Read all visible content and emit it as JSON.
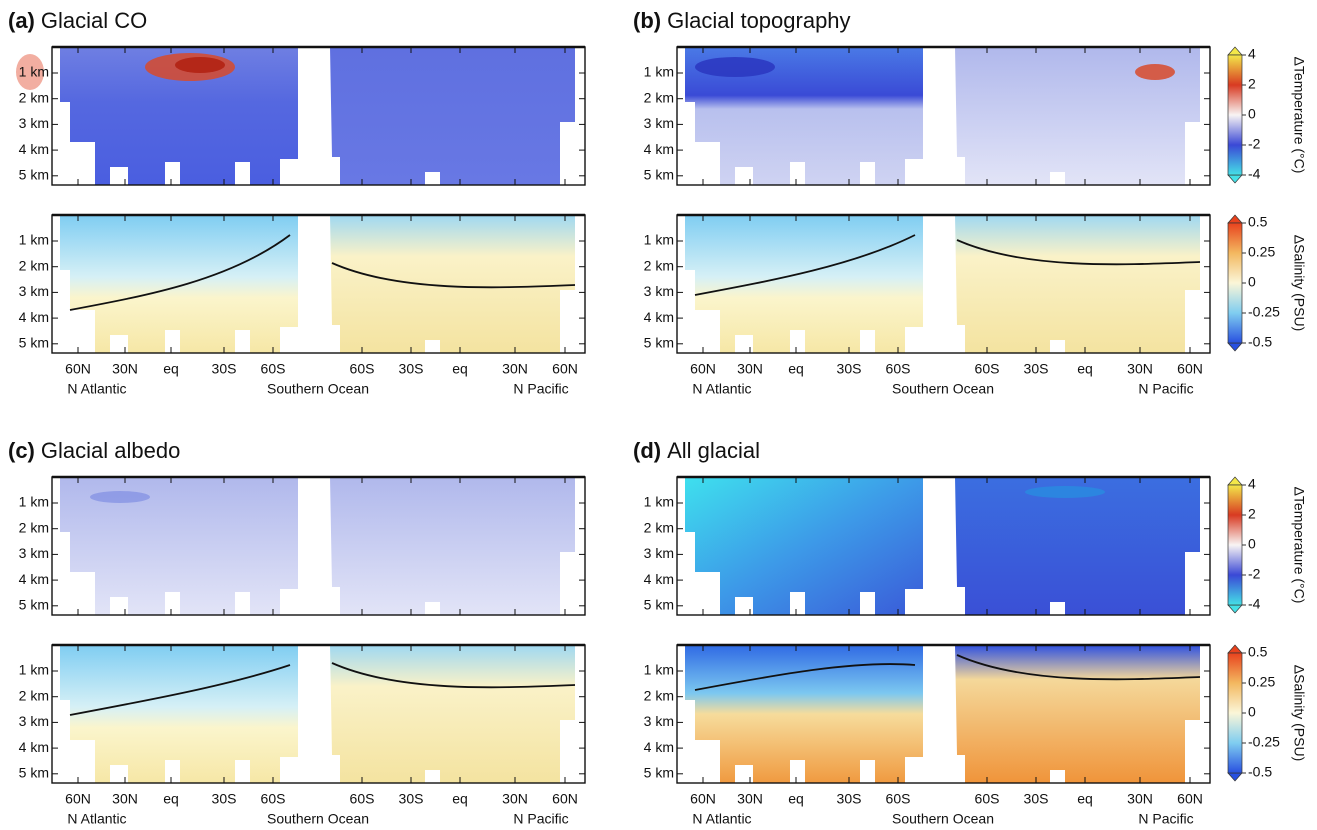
{
  "panels": [
    {
      "label": "(a)",
      "title": "Glacial CO"
    },
    {
      "label": "(b)",
      "title": "Glacial topography"
    },
    {
      "label": "(c)",
      "title": "Glacial albedo"
    },
    {
      "label": "(d)",
      "title": "All glacial"
    }
  ],
  "depth_labels": [
    "1 km",
    "2 km",
    "3 km",
    "4 km",
    "5 km"
  ],
  "lat_labels": [
    "60N",
    "30N",
    "eq",
    "30S",
    "60S",
    "60S",
    "30S",
    "eq",
    "30N",
    "60N"
  ],
  "region_labels": [
    "N Atlantic",
    "Southern Ocean",
    "N Pacific"
  ],
  "colorbars": [
    {
      "label": "ΔTemperature (°C)",
      "range": [
        -4,
        4
      ],
      "ticks": [
        4,
        2,
        0,
        -2,
        -4
      ]
    },
    {
      "label": "ΔSalinity (PSU)",
      "range": [
        -0.5,
        0.5
      ],
      "ticks": [
        0.5,
        0.25,
        0,
        -0.25,
        -0.5
      ]
    }
  ]
}
